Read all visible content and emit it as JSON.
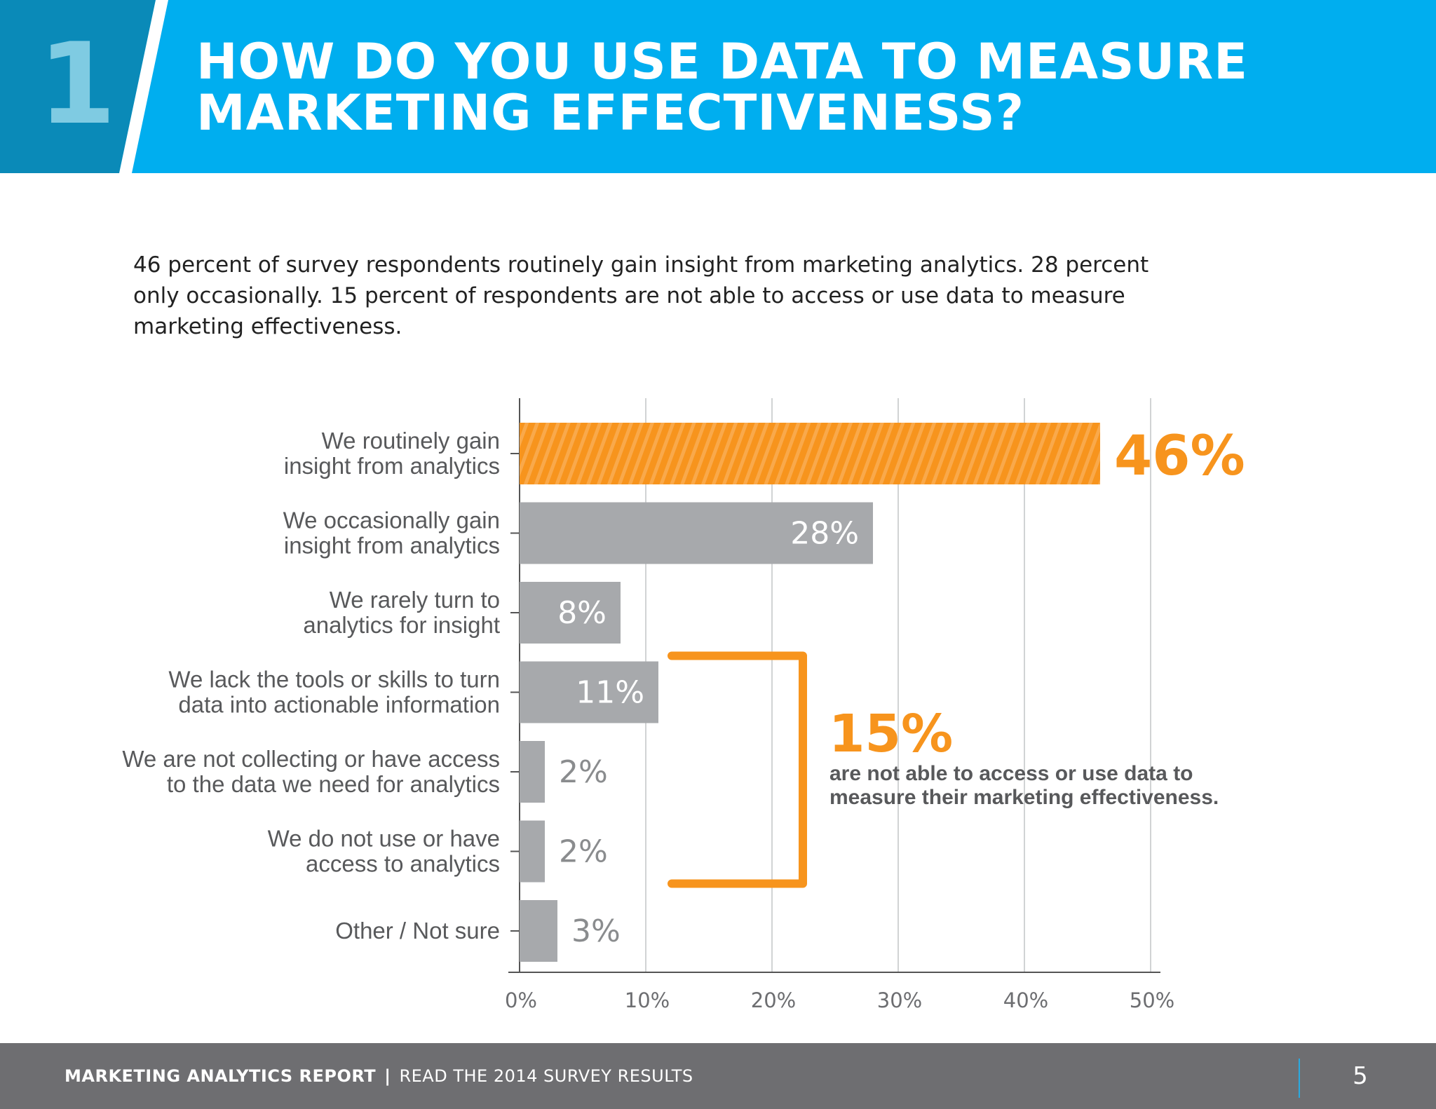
{
  "header": {
    "section_number": "1",
    "title_lines": [
      "HOW DO YOU USE DATA TO MEASURE",
      "MARKETING EFFECTIVENESS?"
    ]
  },
  "intro": {
    "lines": [
      "46 percent of survey respondents routinely gain insight from marketing analytics. 28 percent",
      "only occasionally. 15 percent of respondents are not able to access or use data to measure",
      "marketing effectiveness."
    ]
  },
  "chart_data": {
    "type": "bar",
    "orientation": "horizontal",
    "categories": [
      [
        "We routinely gain",
        "insight from analytics"
      ],
      [
        "We occasionally gain",
        "insight from analytics"
      ],
      [
        "We rarely turn to",
        "analytics for insight"
      ],
      [
        "We lack the tools or skills to turn",
        "data into actionable information"
      ],
      [
        "We are not collecting or have access",
        "to the data we need for analytics"
      ],
      [
        "We do not use or have",
        "access to analytics"
      ],
      [
        "Other / Not sure"
      ]
    ],
    "values": [
      46,
      28,
      8,
      11,
      2,
      2,
      3
    ],
    "value_labels": [
      "46%",
      "28%",
      "8%",
      "11%",
      "2%",
      "2%",
      "3%"
    ],
    "highlight_index": 0,
    "xlim": [
      0,
      50
    ],
    "xticks": [
      0,
      10,
      20,
      30,
      40,
      50
    ],
    "xtick_labels": [
      "0%",
      "10%",
      "20%",
      "30%",
      "40%",
      "50%"
    ],
    "grid": "vertical",
    "colors": {
      "highlight": "#f7941d",
      "bar": "#a7a9ac",
      "grid": "#d1d3d4",
      "callout_number": "#f7941d",
      "callout_text": "#58595b"
    },
    "callout": {
      "bracket_rows": [
        3,
        5
      ],
      "value": "15%",
      "text_lines": [
        "are not able to access or use data to",
        "measure their marketing effectiveness."
      ]
    }
  },
  "footer": {
    "report": "MARKETING ANALYTICS REPORT",
    "separator": "|",
    "link": "READ THE 2014 SURVEY RESULTS",
    "page": "5"
  }
}
